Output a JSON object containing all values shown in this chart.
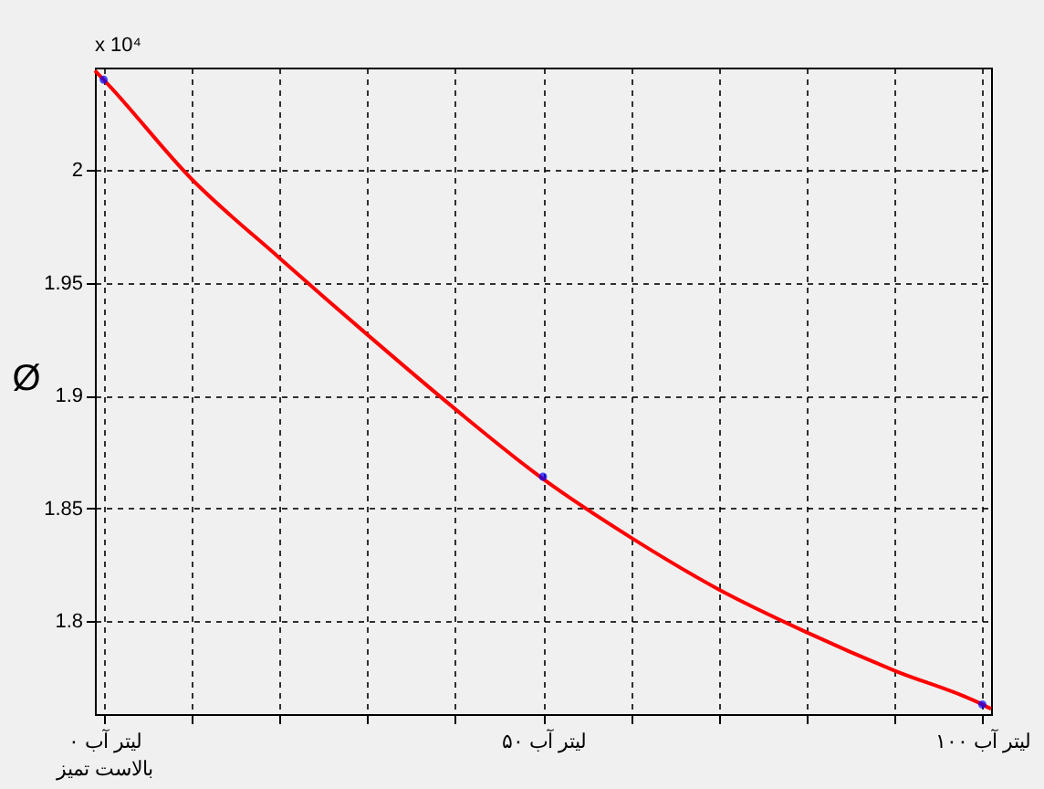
{
  "chart_data": {
    "type": "line",
    "ylabel": "Ø",
    "annotations": [
      "x 10⁴"
    ],
    "xlim": [
      -1,
      101
    ],
    "ylim": [
      1.7587,
      2.0454
    ],
    "xticks": [
      {
        "value": 0,
        "label": "۰ لیتر آب\nبالاست تمیز"
      },
      {
        "value": 10,
        "label": null
      },
      {
        "value": 20,
        "label": null
      },
      {
        "value": 30,
        "label": null
      },
      {
        "value": 40,
        "label": null
      },
      {
        "value": 50,
        "label": "۵۰ لیتر آب"
      },
      {
        "value": 60,
        "label": null
      },
      {
        "value": 70,
        "label": null
      },
      {
        "value": 80,
        "label": null
      },
      {
        "value": 90,
        "label": null
      },
      {
        "value": 100,
        "label": "۱۰۰ لیتر آب"
      }
    ],
    "yticks": [
      1.8,
      1.85,
      1.9,
      1.95,
      2
    ],
    "grid": true,
    "line_style": "solid",
    "series": [
      {
        "color": "#ff0000",
        "marker": "none",
        "x": [
          -1,
          0,
          10,
          20,
          30,
          40,
          50,
          60,
          70,
          80,
          90,
          100,
          101
        ],
        "values": [
          2.044,
          2.04,
          1.996,
          1.961,
          1.927,
          1.894,
          1.863,
          1.837,
          1.814,
          1.795,
          1.778,
          1.763,
          1.761
        ]
      },
      {
        "type": "scatter",
        "color": "#0000ff",
        "marker": "circle",
        "x": [
          0,
          50,
          100
        ],
        "values": [
          2.04,
          1.864,
          1.763
        ]
      }
    ]
  }
}
